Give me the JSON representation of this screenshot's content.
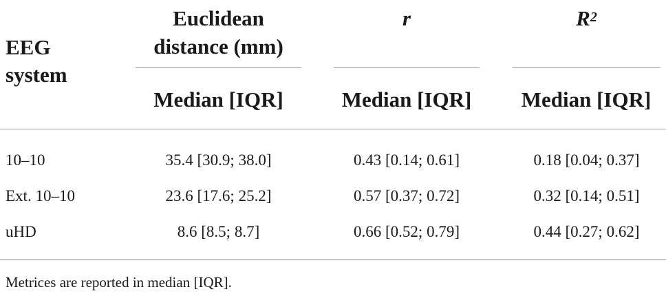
{
  "header": {
    "system_label_line1": "EEG",
    "system_label_line2": "system",
    "col1_label_line1": "Euclidean",
    "col1_label_line2": "distance (mm)",
    "col2_label": "r",
    "col3_label_base": "R",
    "col3_label_sup": "2",
    "sub_label": "Median [IQR]"
  },
  "rows": [
    {
      "system": "10–10",
      "distance": "35.4 [30.9; 38.0]",
      "r": "0.43 [0.14; 0.61]",
      "r2": "0.18 [0.04; 0.37]"
    },
    {
      "system": "Ext. 10–10",
      "distance": "23.6 [17.6; 25.2]",
      "r": "0.57 [0.37; 0.72]",
      "r2": "0.32 [0.14; 0.51]"
    },
    {
      "system": "uHD",
      "distance": "8.6 [8.5; 8.7]",
      "r": "0.66 [0.52; 0.79]",
      "r2": "0.44 [0.27; 0.62]"
    }
  ],
  "footnote": "Metrices are reported in median [IQR]."
}
